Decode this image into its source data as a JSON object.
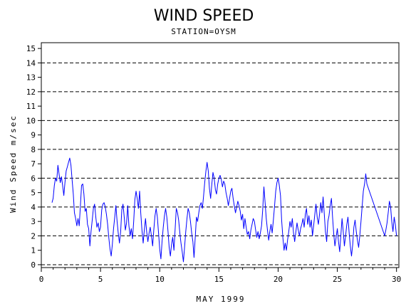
{
  "chart_data": {
    "type": "line",
    "title": "WIND SPEED",
    "subtitle": "STATION=OYSM",
    "xlabel": "MAY 1999",
    "ylabel": "Wind Speed m/sec",
    "xlim": [
      0,
      30.2
    ],
    "ylim": [
      -0.2,
      15.4
    ],
    "x_ticks": [
      0,
      5,
      10,
      15,
      20,
      25,
      30
    ],
    "y_ticks": [
      0,
      1,
      2,
      3,
      4,
      5,
      6,
      7,
      8,
      9,
      10,
      11,
      12,
      13,
      14,
      15
    ],
    "reference_lines": [
      0,
      2,
      4,
      6,
      8,
      10,
      12,
      14
    ],
    "line_color": "#0000ff",
    "series": [
      {
        "values": [
          [
            0.9,
            4.3
          ],
          [
            1.0,
            4.6
          ],
          [
            1.1,
            5.5
          ],
          [
            1.2,
            6.0
          ],
          [
            1.3,
            5.8
          ],
          [
            1.4,
            6.9
          ],
          [
            1.5,
            6.3
          ],
          [
            1.6,
            5.7
          ],
          [
            1.7,
            6.1
          ],
          [
            1.8,
            5.5
          ],
          [
            1.9,
            4.8
          ],
          [
            2.0,
            5.7
          ],
          [
            2.1,
            6.5
          ],
          [
            2.2,
            6.8
          ],
          [
            2.3,
            7.1
          ],
          [
            2.4,
            7.4
          ],
          [
            2.5,
            6.9
          ],
          [
            2.6,
            5.9
          ],
          [
            2.7,
            4.9
          ],
          [
            2.8,
            3.6
          ],
          [
            2.9,
            3.2
          ],
          [
            3.0,
            2.7
          ],
          [
            3.1,
            3.2
          ],
          [
            3.2,
            2.7
          ],
          [
            3.3,
            4.1
          ],
          [
            3.4,
            5.5
          ],
          [
            3.5,
            5.6
          ],
          [
            3.6,
            4.9
          ],
          [
            3.7,
            3.7
          ],
          [
            3.8,
            3.9
          ],
          [
            3.9,
            2.8
          ],
          [
            4.0,
            2.5
          ],
          [
            4.1,
            1.3
          ],
          [
            4.2,
            2.3
          ],
          [
            4.3,
            3.1
          ],
          [
            4.4,
            3.9
          ],
          [
            4.5,
            4.2
          ],
          [
            4.6,
            3.3
          ],
          [
            4.7,
            2.6
          ],
          [
            4.8,
            2.9
          ],
          [
            4.9,
            2.3
          ],
          [
            5.0,
            2.6
          ],
          [
            5.1,
            3.8
          ],
          [
            5.2,
            4.2
          ],
          [
            5.3,
            4.3
          ],
          [
            5.4,
            4.0
          ],
          [
            5.5,
            3.5
          ],
          [
            5.6,
            2.8
          ],
          [
            5.7,
            1.9
          ],
          [
            5.8,
            1.1
          ],
          [
            5.9,
            0.6
          ],
          [
            6.0,
            1.4
          ],
          [
            6.1,
            2.5
          ],
          [
            6.2,
            3.3
          ],
          [
            6.3,
            4.1
          ],
          [
            6.4,
            3.0
          ],
          [
            6.5,
            2.2
          ],
          [
            6.6,
            1.5
          ],
          [
            6.7,
            2.3
          ],
          [
            6.8,
            3.8
          ],
          [
            6.9,
            4.2
          ],
          [
            7.0,
            3.3
          ],
          [
            7.1,
            2.4
          ],
          [
            7.2,
            2.9
          ],
          [
            7.3,
            4.1
          ],
          [
            7.4,
            2.7
          ],
          [
            7.5,
            2.0
          ],
          [
            7.6,
            2.5
          ],
          [
            7.7,
            1.8
          ],
          [
            7.8,
            3.0
          ],
          [
            7.9,
            4.5
          ],
          [
            8.0,
            5.1
          ],
          [
            8.1,
            4.6
          ],
          [
            8.2,
            3.9
          ],
          [
            8.3,
            5.1
          ],
          [
            8.4,
            3.6
          ],
          [
            8.5,
            2.4
          ],
          [
            8.6,
            1.5
          ],
          [
            8.7,
            2.4
          ],
          [
            8.8,
            3.2
          ],
          [
            8.9,
            2.3
          ],
          [
            9.0,
            1.6
          ],
          [
            9.1,
            2.2
          ],
          [
            9.2,
            2.6
          ],
          [
            9.3,
            2.0
          ],
          [
            9.4,
            1.3
          ],
          [
            9.5,
            2.4
          ],
          [
            9.6,
            3.4
          ],
          [
            9.7,
            3.9
          ],
          [
            9.8,
            3.3
          ],
          [
            9.9,
            2.2
          ],
          [
            10.0,
            1.1
          ],
          [
            10.1,
            0.4
          ],
          [
            10.2,
            1.6
          ],
          [
            10.3,
            2.6
          ],
          [
            10.4,
            3.4
          ],
          [
            10.5,
            3.9
          ],
          [
            10.6,
            3.3
          ],
          [
            10.7,
            2.3
          ],
          [
            10.8,
            1.2
          ],
          [
            10.9,
            0.6
          ],
          [
            11.0,
            1.4
          ],
          [
            11.1,
            1.9
          ],
          [
            11.2,
            1.0
          ],
          [
            11.3,
            2.4
          ],
          [
            11.4,
            3.9
          ],
          [
            11.5,
            3.6
          ],
          [
            11.6,
            3.1
          ],
          [
            11.7,
            2.2
          ],
          [
            11.8,
            1.5
          ],
          [
            11.9,
            0.9
          ],
          [
            12.0,
            0.2
          ],
          [
            12.1,
            1.2
          ],
          [
            12.2,
            2.3
          ],
          [
            12.3,
            3.2
          ],
          [
            12.4,
            3.9
          ],
          [
            12.5,
            3.6
          ],
          [
            12.6,
            3.0
          ],
          [
            12.7,
            2.2
          ],
          [
            12.8,
            1.6
          ],
          [
            12.9,
            0.5
          ],
          [
            13.0,
            1.9
          ],
          [
            13.1,
            3.3
          ],
          [
            13.2,
            3.0
          ],
          [
            13.3,
            3.6
          ],
          [
            13.4,
            4.1
          ],
          [
            13.5,
            4.3
          ],
          [
            13.6,
            3.9
          ],
          [
            13.7,
            4.7
          ],
          [
            13.8,
            5.7
          ],
          [
            13.9,
            6.5
          ],
          [
            14.0,
            7.1
          ],
          [
            14.1,
            6.5
          ],
          [
            14.2,
            5.3
          ],
          [
            14.3,
            4.6
          ],
          [
            14.4,
            5.6
          ],
          [
            14.5,
            6.4
          ],
          [
            14.6,
            6.0
          ],
          [
            14.7,
            5.2
          ],
          [
            14.8,
            4.9
          ],
          [
            14.9,
            5.6
          ],
          [
            15.0,
            6.0
          ],
          [
            15.1,
            6.2
          ],
          [
            15.2,
            5.9
          ],
          [
            15.3,
            5.4
          ],
          [
            15.4,
            5.8
          ],
          [
            15.5,
            5.6
          ],
          [
            15.6,
            5.0
          ],
          [
            15.7,
            4.6
          ],
          [
            15.8,
            4.1
          ],
          [
            15.9,
            4.6
          ],
          [
            16.0,
            5.1
          ],
          [
            16.1,
            5.3
          ],
          [
            16.2,
            4.6
          ],
          [
            16.3,
            4.1
          ],
          [
            16.4,
            3.6
          ],
          [
            16.5,
            4.0
          ],
          [
            16.6,
            4.4
          ],
          [
            16.7,
            4.1
          ],
          [
            16.8,
            3.7
          ],
          [
            16.9,
            3.1
          ],
          [
            17.0,
            3.5
          ],
          [
            17.1,
            2.5
          ],
          [
            17.2,
            3.2
          ],
          [
            17.3,
            2.6
          ],
          [
            17.4,
            2.1
          ],
          [
            17.5,
            2.3
          ],
          [
            17.6,
            1.8
          ],
          [
            17.7,
            2.4
          ],
          [
            17.8,
            2.8
          ],
          [
            17.9,
            3.2
          ],
          [
            18.0,
            3.0
          ],
          [
            18.1,
            2.4
          ],
          [
            18.2,
            1.9
          ],
          [
            18.3,
            2.3
          ],
          [
            18.4,
            1.8
          ],
          [
            18.5,
            2.2
          ],
          [
            18.6,
            2.7
          ],
          [
            18.7,
            3.8
          ],
          [
            18.8,
            5.4
          ],
          [
            18.9,
            4.3
          ],
          [
            19.0,
            3.2
          ],
          [
            19.1,
            2.4
          ],
          [
            19.2,
            1.7
          ],
          [
            19.3,
            2.3
          ],
          [
            19.4,
            2.8
          ],
          [
            19.5,
            2.2
          ],
          [
            19.6,
            3.1
          ],
          [
            19.7,
            4.1
          ],
          [
            19.8,
            5.1
          ],
          [
            19.9,
            5.7
          ],
          [
            20.0,
            6.0
          ],
          [
            20.1,
            5.5
          ],
          [
            20.2,
            4.8
          ],
          [
            20.3,
            3.1
          ],
          [
            20.4,
            1.9
          ],
          [
            20.5,
            1.0
          ],
          [
            20.6,
            1.5
          ],
          [
            20.7,
            1.0
          ],
          [
            20.8,
            1.7
          ],
          [
            20.9,
            2.3
          ],
          [
            21.0,
            3.0
          ],
          [
            21.1,
            2.6
          ],
          [
            21.2,
            3.2
          ],
          [
            21.3,
            2.2
          ],
          [
            21.4,
            1.6
          ],
          [
            21.5,
            2.3
          ],
          [
            21.6,
            2.9
          ],
          [
            21.7,
            2.4
          ],
          [
            21.8,
            2.0
          ],
          [
            21.9,
            2.5
          ],
          [
            22.0,
            2.8
          ],
          [
            22.1,
            3.2
          ],
          [
            22.2,
            2.6
          ],
          [
            22.3,
            3.5
          ],
          [
            22.4,
            3.9
          ],
          [
            22.5,
            2.8
          ],
          [
            22.6,
            3.4
          ],
          [
            22.7,
            2.6
          ],
          [
            22.8,
            3.1
          ],
          [
            22.9,
            2.0
          ],
          [
            23.0,
            2.7
          ],
          [
            23.1,
            3.5
          ],
          [
            23.2,
            4.2
          ],
          [
            23.3,
            3.3
          ],
          [
            23.4,
            2.8
          ],
          [
            23.5,
            3.5
          ],
          [
            23.6,
            4.3
          ],
          [
            23.7,
            3.6
          ],
          [
            23.8,
            4.7
          ],
          [
            23.9,
            3.5
          ],
          [
            24.0,
            2.3
          ],
          [
            24.1,
            1.6
          ],
          [
            24.2,
            3.0
          ],
          [
            24.3,
            3.4
          ],
          [
            24.4,
            4.1
          ],
          [
            24.5,
            4.6
          ],
          [
            24.6,
            3.3
          ],
          [
            24.7,
            2.1
          ],
          [
            24.8,
            1.3
          ],
          [
            24.9,
            1.9
          ],
          [
            25.0,
            2.5
          ],
          [
            25.1,
            1.6
          ],
          [
            25.2,
            0.9
          ],
          [
            25.3,
            2.0
          ],
          [
            25.4,
            3.2
          ],
          [
            25.5,
            2.3
          ],
          [
            25.6,
            1.3
          ],
          [
            25.7,
            2.0
          ],
          [
            25.8,
            2.8
          ],
          [
            25.9,
            3.3
          ],
          [
            26.0,
            2.2
          ],
          [
            26.1,
            1.3
          ],
          [
            26.2,
            0.6
          ],
          [
            26.3,
            1.4
          ],
          [
            26.4,
            2.6
          ],
          [
            26.5,
            3.1
          ],
          [
            26.6,
            2.3
          ],
          [
            26.7,
            1.7
          ],
          [
            26.8,
            1.2
          ],
          [
            26.9,
            2.0
          ],
          [
            27.0,
            3.0
          ],
          [
            27.1,
            4.1
          ],
          [
            27.2,
            5.1
          ],
          [
            27.3,
            5.6
          ],
          [
            27.4,
            6.3
          ],
          [
            27.5,
            5.6
          ],
          [
            29.0,
            2.0
          ],
          [
            29.1,
            2.4
          ],
          [
            29.2,
            2.9
          ],
          [
            29.3,
            3.6
          ],
          [
            29.4,
            4.4
          ],
          [
            29.5,
            4.0
          ],
          [
            29.6,
            3.0
          ],
          [
            29.7,
            2.3
          ],
          [
            29.8,
            3.3
          ],
          [
            29.9,
            2.8
          ],
          [
            30.0,
            2.0
          ]
        ]
      }
    ]
  }
}
